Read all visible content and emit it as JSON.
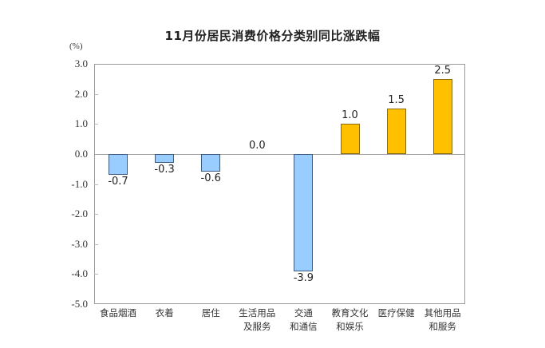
{
  "chart_data": {
    "type": "bar",
    "title": "11月份居民消费价格分类别同比涨跌幅",
    "ylabel": "(%)",
    "xlabel": "",
    "ylim": [
      -5.0,
      3.0
    ],
    "yticks": [
      "3.0",
      "2.0",
      "1.0",
      "0.0",
      "-1.0",
      "-2.0",
      "-3.0",
      "-4.0",
      "-5.0"
    ],
    "grid": false,
    "legend": null,
    "categories": [
      "食品烟酒",
      "衣着",
      "居住",
      "生活用品及服务",
      "交通和通信",
      "教育文化和娱乐",
      "医疗保健",
      "其他用品和服务"
    ],
    "category_lines": [
      [
        "食品烟酒"
      ],
      [
        "衣着"
      ],
      [
        "居住"
      ],
      [
        "生活用品",
        "及服务"
      ],
      [
        "交通",
        "和通信"
      ],
      [
        "教育文化",
        "和娱乐"
      ],
      [
        "医疗保健"
      ],
      [
        "其他用品",
        "和服务"
      ]
    ],
    "values": [
      -0.7,
      -0.3,
      -0.6,
      0.0,
      -3.9,
      1.0,
      1.5,
      2.5
    ],
    "value_labels": [
      "-0.7",
      "-0.3",
      "-0.6",
      "0.0",
      "-3.9",
      "1.0",
      "1.5",
      "2.5"
    ],
    "colors": {
      "negative": "#99ccff",
      "positive": "#ffc000"
    }
  }
}
